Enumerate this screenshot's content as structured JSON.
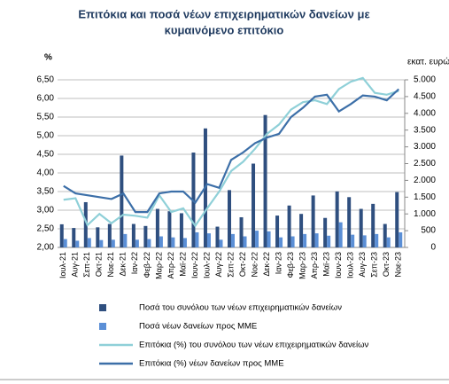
{
  "chart_data": {
    "type": "bar-line",
    "title": "Επιτόκια και ποσά νέων επιχειρηματικών δανείων με",
    "subtitle": "κυμαινόμενο επιτόκιο",
    "y_label": "%",
    "y2_label": "εκατ. ευρώ",
    "categories": [
      "Ιουλ-21",
      "Αυγ-21",
      "Σεπ-21",
      "Οκτ-21",
      "Νοε-21",
      "Δεκ-21",
      "Ιαν-22",
      "Φεβ-22",
      "Μαρ-22",
      "Απρ-22",
      "Μαϊ-22",
      "Ιουν-22",
      "Ιουλ-22",
      "Αυγ-22",
      "Σεπ-22",
      "Οκτ-22",
      "Νοε-22",
      "Δεκ-22",
      "Ιαν-23",
      "Φεβ-23",
      "Μαρ-23",
      "Απρ-23",
      "Μαϊ-23",
      "Ιουν-23",
      "Ιουλ-23",
      "Αυγ-23",
      "Σεπ-23",
      "Οκτ-23",
      "Νοε-23"
    ],
    "series": [
      {
        "name": "Ποσά του συνόλου των νέων επιχειρηματικών δανείων",
        "kind": "bar",
        "axis": "y2",
        "color": "#2f4f7f",
        "values": [
          690,
          580,
          1350,
          600,
          700,
          2740,
          700,
          640,
          1150,
          1080,
          1020,
          2830,
          3550,
          620,
          1710,
          900,
          2500,
          3950,
          950,
          1250,
          1000,
          1550,
          880,
          1670,
          1500,
          1150,
          1300,
          700,
          1650
        ]
      },
      {
        "name": "Ποσά νέων δανείων προς ΜΜΕ",
        "kind": "bar",
        "axis": "y2",
        "color": "#5b8fd6",
        "values": [
          250,
          200,
          280,
          220,
          230,
          400,
          230,
          250,
          330,
          300,
          280,
          450,
          420,
          230,
          400,
          330,
          500,
          480,
          300,
          330,
          400,
          420,
          350,
          750,
          380,
          360,
          400,
          300,
          450
        ]
      },
      {
        "name": "Επιτόκια (%) του συνόλου των νέων επιχειρηματικών δανείων",
        "kind": "line",
        "color": "#8fd0d8",
        "values": [
          3.28,
          3.32,
          2.6,
          2.9,
          2.65,
          2.88,
          2.85,
          2.8,
          3.4,
          2.95,
          3.05,
          2.58,
          3.05,
          3.5,
          4.05,
          4.3,
          4.65,
          5.05,
          5.3,
          5.7,
          5.9,
          5.95,
          5.85,
          6.25,
          6.45,
          6.55,
          6.15,
          6.1,
          6.2
        ]
      },
      {
        "name": "Επιτόκια (%) νέων δανείων προς ΜΜΕ",
        "kind": "line",
        "color": "#3c6fa8",
        "values": [
          3.65,
          3.45,
          3.4,
          3.35,
          3.3,
          3.45,
          2.95,
          2.95,
          3.45,
          3.5,
          3.5,
          3.2,
          3.7,
          3.6,
          4.35,
          4.55,
          4.8,
          4.95,
          5.05,
          5.5,
          5.75,
          6.05,
          6.1,
          5.65,
          5.85,
          6.08,
          6.05,
          5.95,
          6.25
        ]
      }
    ],
    "ylim": [
      2,
      6.5
    ],
    "yticks": [
      {
        "value": 2,
        "label": "2,00"
      },
      {
        "value": 2.5,
        "label": "2,50"
      },
      {
        "value": 3,
        "label": "3,00"
      },
      {
        "value": 3.5,
        "label": "3,50"
      },
      {
        "value": 4,
        "label": "4,00"
      },
      {
        "value": 4.5,
        "label": "4,50"
      },
      {
        "value": 5,
        "label": "5,00"
      },
      {
        "value": 5.5,
        "label": "5,50"
      },
      {
        "value": 6,
        "label": "6,00"
      },
      {
        "value": 6.5,
        "label": "6,50"
      }
    ],
    "y2lim": [
      0,
      5000
    ],
    "y2ticks": [
      0,
      500,
      {
        "value": 1000,
        "label": "1.000"
      },
      {
        "value": 1500,
        "label": "1.500"
      },
      {
        "value": 2000,
        "label": "2.000"
      },
      {
        "value": 2500,
        "label": "2.500"
      },
      {
        "value": 3000,
        "label": "3.000"
      },
      {
        "value": 3500,
        "label": "3.500"
      },
      {
        "value": 4000,
        "label": "4.000"
      },
      {
        "value": 4500,
        "label": "4.500"
      },
      {
        "value": 5000,
        "label": "5.000"
      }
    ],
    "grid": true
  }
}
